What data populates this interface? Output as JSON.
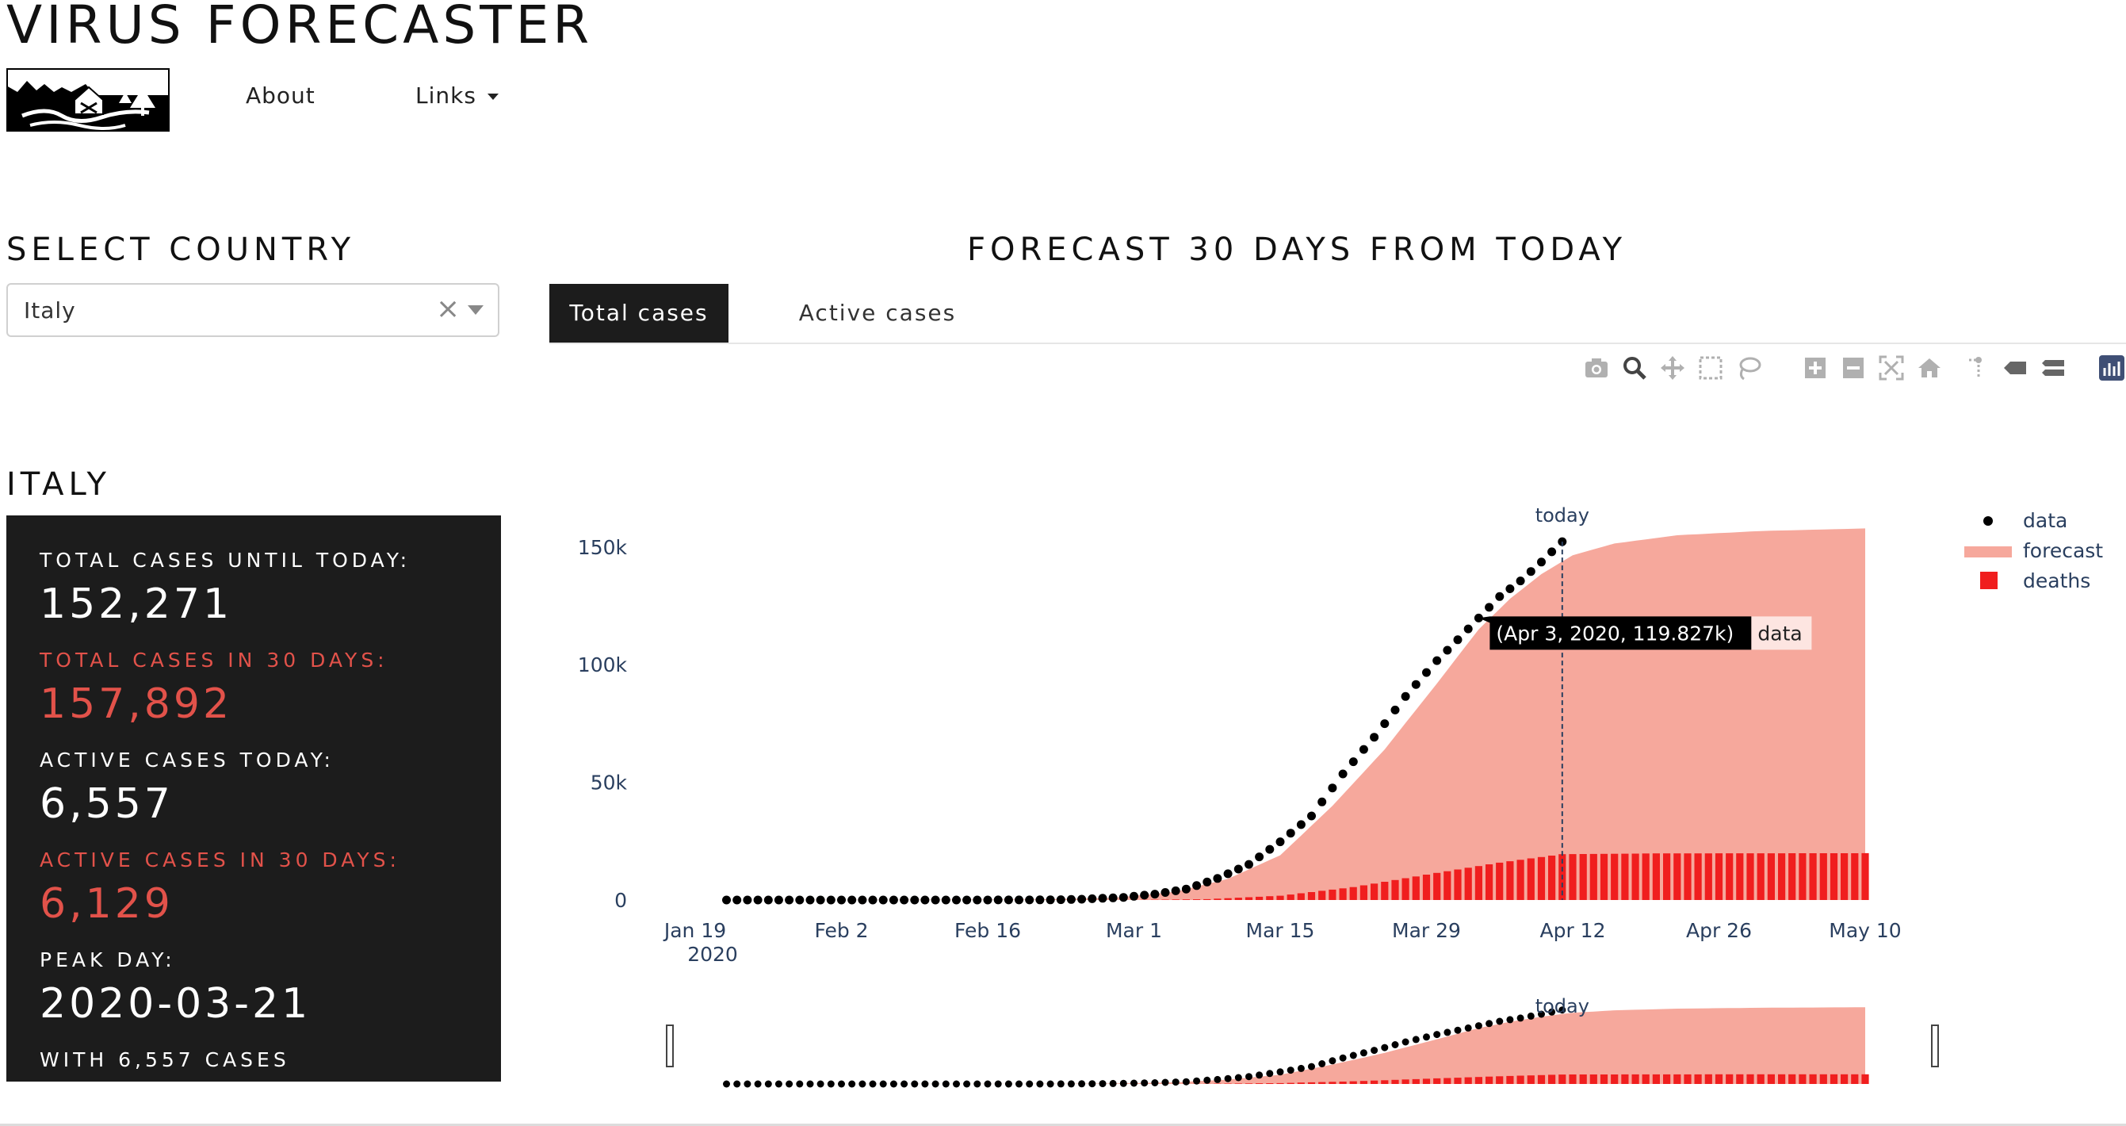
{
  "app": {
    "title": "VIRUS FORECASTER",
    "nav": [
      {
        "label": "About"
      },
      {
        "label": "Links"
      }
    ]
  },
  "sidebar": {
    "select_heading": "SELECT COUNTRY",
    "country_value": "Italy",
    "clear_glyph": "×",
    "country_heading": "ITALY",
    "stats": {
      "total_cases_label": "TOTAL CASES UNTIL TODAY:",
      "total_cases_value": "152,271",
      "total_30_label": "TOTAL CASES IN 30 DAYS:",
      "total_30_value": "157,892",
      "active_label": "ACTIVE CASES TODAY:",
      "active_value": "6,557",
      "active_30_label": "ACTIVE CASES IN 30 DAYS:",
      "active_30_value": "6,129",
      "peak_label": "PEAK DAY:",
      "peak_value": "2020-03-21",
      "peak_foot": "WITH 6,557 CASES"
    }
  },
  "main": {
    "heading": "FORECAST 30 DAYS FROM TODAY",
    "tabs": [
      {
        "label": "Total cases",
        "active": true
      },
      {
        "label": "Active cases",
        "active": false
      }
    ],
    "toolbar_icons": [
      "camera-icon",
      "zoom-icon",
      "pan-icon",
      "box-select-icon",
      "lasso-icon",
      "zoom-in-icon",
      "zoom-out-icon",
      "autoscale-icon",
      "reset-axes-icon",
      "spike-lines-icon",
      "hover-closest-icon",
      "hover-compare-icon",
      "plotly-logo-icon"
    ]
  },
  "colors": {
    "data": "#000000",
    "forecast": "#f6a89c",
    "deaths": "#f01e1e",
    "stats_bg": "#1c1c1c",
    "stats_red": "#e2524a"
  },
  "chart_data": {
    "type": "area",
    "x_axis": {
      "type": "date",
      "range": [
        "2020-01-19",
        "2020-05-10"
      ],
      "tick_labels": [
        "Jan 19\n2020",
        "Feb 2",
        "Feb 16",
        "Mar 1",
        "Mar 15",
        "Mar 29",
        "Apr 12",
        "Apr 26",
        "May 10"
      ]
    },
    "y_axis": {
      "range": [
        0,
        155000
      ],
      "tick_labels": [
        "0",
        "50k",
        "100k",
        "150k"
      ]
    },
    "today_marker": {
      "date": "2020-04-11",
      "label": "today"
    },
    "legend": {
      "placement": "top-right",
      "items": [
        "data",
        "forecast",
        "deaths"
      ]
    },
    "tooltip": {
      "value": "(Apr 3, 2020, 119.827k)",
      "series": "data"
    },
    "series": [
      {
        "name": "data",
        "style": "markers",
        "points": [
          [
            "2020-01-22",
            0
          ],
          [
            "2020-02-01",
            0
          ],
          [
            "2020-02-15",
            3
          ],
          [
            "2020-02-22",
            62
          ],
          [
            "2020-02-25",
            322
          ],
          [
            "2020-02-29",
            1128
          ],
          [
            "2020-03-03",
            2502
          ],
          [
            "2020-03-06",
            4636
          ],
          [
            "2020-03-09",
            9172
          ],
          [
            "2020-03-12",
            15113
          ],
          [
            "2020-03-15",
            24747
          ],
          [
            "2020-03-18",
            35713
          ],
          [
            "2020-03-21",
            53578
          ],
          [
            "2020-03-24",
            69176
          ],
          [
            "2020-03-27",
            86498
          ],
          [
            "2020-03-30",
            101739
          ],
          [
            "2020-04-01",
            110574
          ],
          [
            "2020-04-03",
            119827
          ],
          [
            "2020-04-05",
            128948
          ],
          [
            "2020-04-07",
            135586
          ],
          [
            "2020-04-09",
            143626
          ],
          [
            "2020-04-11",
            152271
          ]
        ]
      },
      {
        "name": "forecast",
        "style": "area",
        "points": [
          [
            "2020-01-22",
            0
          ],
          [
            "2020-02-20",
            200
          ],
          [
            "2020-02-28",
            900
          ],
          [
            "2020-03-05",
            3500
          ],
          [
            "2020-03-10",
            9000
          ],
          [
            "2020-03-15",
            19000
          ],
          [
            "2020-03-20",
            40000
          ],
          [
            "2020-03-25",
            64000
          ],
          [
            "2020-03-30",
            92000
          ],
          [
            "2020-04-03",
            115000
          ],
          [
            "2020-04-06",
            128000
          ],
          [
            "2020-04-09",
            138500
          ],
          [
            "2020-04-12",
            146500
          ],
          [
            "2020-04-16",
            151500
          ],
          [
            "2020-04-22",
            155000
          ],
          [
            "2020-04-30",
            156800
          ],
          [
            "2020-05-10",
            157892
          ]
        ]
      },
      {
        "name": "deaths",
        "style": "bars",
        "points": [
          [
            "2020-02-22",
            0
          ],
          [
            "2020-03-01",
            34
          ],
          [
            "2020-03-08",
            366
          ],
          [
            "2020-03-15",
            1809
          ],
          [
            "2020-03-22",
            5476
          ],
          [
            "2020-03-29",
            10779
          ],
          [
            "2020-04-05",
            15887
          ],
          [
            "2020-04-11",
            19468
          ],
          [
            "2020-04-20",
            19800
          ],
          [
            "2020-05-10",
            19900
          ]
        ]
      }
    ]
  }
}
